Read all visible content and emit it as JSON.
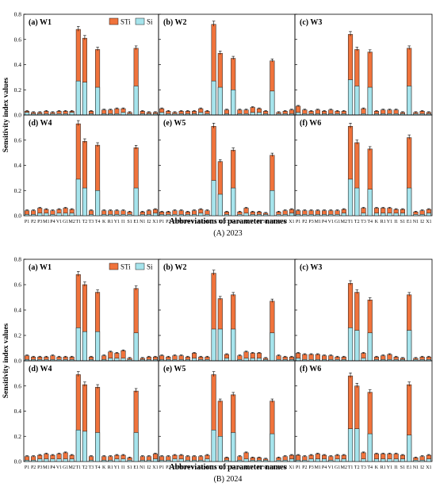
{
  "figure": {
    "ylabel": "Sensitivity index values",
    "xlabel": "Abbreviations of parameter names",
    "colors": {
      "sti": "#f0733c",
      "si": "#a6e4ec",
      "edge": "#1a1a1a",
      "error": "#000000"
    },
    "legend": {
      "sti": "STi",
      "si": "Si",
      "placement": "top-right of first panel"
    },
    "yticks": [
      "0.0",
      "0.2",
      "0.4",
      "0.6",
      "0.8"
    ],
    "ylim": [
      0,
      0.8
    ]
  },
  "chart_data": [
    {
      "type": "bar",
      "stacked": true,
      "caption": "(A) 2023",
      "categories": [
        "P1",
        "P2",
        "P3",
        "M1",
        "P4",
        "V1",
        "G1",
        "M2",
        "T1",
        "T2",
        "T3",
        "T4",
        "K",
        "R1",
        "Y1",
        "I1",
        "S1",
        "E1",
        "N1",
        "I2",
        "X1"
      ],
      "panels": [
        {
          "label": "(a) W1",
          "sti": [
            0.03,
            0.02,
            0.02,
            0.03,
            0.02,
            0.03,
            0.03,
            0.03,
            0.68,
            0.61,
            0.03,
            0.52,
            0.04,
            0.04,
            0.05,
            0.05,
            0.02,
            0.53,
            0.03,
            0.02,
            0.02
          ],
          "si": [
            0.02,
            0.01,
            0.01,
            0.01,
            0.01,
            0.01,
            0.01,
            0.02,
            0.27,
            0.26,
            0.01,
            0.22,
            0.01,
            0.01,
            0.01,
            0.02,
            0.01,
            0.23,
            0.01,
            0.01,
            0.01
          ]
        },
        {
          "label": "(b) W2",
          "sti": [
            0.05,
            0.03,
            0.02,
            0.03,
            0.03,
            0.03,
            0.05,
            0.03,
            0.72,
            0.49,
            0.04,
            0.45,
            0.04,
            0.04,
            0.06,
            0.05,
            0.03,
            0.43,
            0.02,
            0.03,
            0.04
          ],
          "si": [
            0.02,
            0.01,
            0.01,
            0.01,
            0.01,
            0.01,
            0.02,
            0.01,
            0.27,
            0.22,
            0.01,
            0.2,
            0.01,
            0.01,
            0.02,
            0.02,
            0.01,
            0.19,
            0.01,
            0.01,
            0.01
          ]
        },
        {
          "label": "(c) W3",
          "sti": [
            0.07,
            0.04,
            0.03,
            0.04,
            0.03,
            0.04,
            0.03,
            0.03,
            0.64,
            0.52,
            0.05,
            0.5,
            0.03,
            0.04,
            0.04,
            0.04,
            0.02,
            0.53,
            0.02,
            0.03,
            0.02
          ],
          "si": [
            0.02,
            0.01,
            0.01,
            0.01,
            0.01,
            0.01,
            0.01,
            0.01,
            0.28,
            0.23,
            0.01,
            0.22,
            0.01,
            0.01,
            0.01,
            0.01,
            0.01,
            0.23,
            0.01,
            0.01,
            0.01
          ]
        },
        {
          "label": "(d) W4",
          "sti": [
            0.04,
            0.04,
            0.06,
            0.05,
            0.04,
            0.05,
            0.06,
            0.05,
            0.73,
            0.59,
            0.04,
            0.56,
            0.04,
            0.04,
            0.04,
            0.04,
            0.03,
            0.54,
            0.03,
            0.04,
            0.05
          ],
          "si": [
            0.01,
            0.01,
            0.02,
            0.02,
            0.01,
            0.02,
            0.02,
            0.02,
            0.29,
            0.22,
            0.01,
            0.2,
            0.01,
            0.01,
            0.01,
            0.01,
            0.01,
            0.22,
            0.01,
            0.01,
            0.02
          ]
        },
        {
          "label": "(e) W5",
          "sti": [
            0.03,
            0.03,
            0.04,
            0.04,
            0.03,
            0.04,
            0.05,
            0.04,
            0.71,
            0.43,
            0.03,
            0.52,
            0.03,
            0.06,
            0.03,
            0.03,
            0.02,
            0.48,
            0.03,
            0.04,
            0.05
          ],
          "si": [
            0.01,
            0.01,
            0.01,
            0.01,
            0.01,
            0.01,
            0.02,
            0.01,
            0.28,
            0.17,
            0.01,
            0.22,
            0.01,
            0.02,
            0.01,
            0.01,
            0.01,
            0.2,
            0.01,
            0.01,
            0.02
          ]
        },
        {
          "label": "(f) W6",
          "sti": [
            0.04,
            0.04,
            0.04,
            0.04,
            0.04,
            0.04,
            0.04,
            0.05,
            0.71,
            0.58,
            0.06,
            0.53,
            0.06,
            0.06,
            0.06,
            0.05,
            0.05,
            0.62,
            0.03,
            0.04,
            0.05
          ],
          "si": [
            0.01,
            0.01,
            0.01,
            0.01,
            0.01,
            0.01,
            0.01,
            0.02,
            0.29,
            0.22,
            0.02,
            0.21,
            0.02,
            0.02,
            0.02,
            0.02,
            0.02,
            0.22,
            0.01,
            0.01,
            0.02
          ]
        }
      ]
    },
    {
      "type": "bar",
      "stacked": true,
      "caption": "(B) 2024",
      "categories": [
        "P1",
        "P2",
        "P3",
        "M1",
        "P4",
        "V1",
        "G1",
        "M2",
        "T1",
        "T2",
        "T3",
        "T4",
        "K",
        "R1",
        "Y1",
        "I1",
        "S1",
        "E1",
        "N1",
        "I2",
        "X1"
      ],
      "panels": [
        {
          "label": "(a) W1",
          "sti": [
            0.04,
            0.03,
            0.03,
            0.03,
            0.04,
            0.03,
            0.03,
            0.03,
            0.68,
            0.6,
            0.03,
            0.54,
            0.04,
            0.07,
            0.06,
            0.08,
            0.02,
            0.57,
            0.02,
            0.03,
            0.03
          ],
          "si": [
            0.01,
            0.01,
            0.01,
            0.01,
            0.01,
            0.01,
            0.01,
            0.01,
            0.26,
            0.23,
            0.01,
            0.23,
            0.01,
            0.02,
            0.02,
            0.02,
            0.01,
            0.22,
            0.01,
            0.01,
            0.01
          ]
        },
        {
          "label": "(b) W2",
          "sti": [
            0.04,
            0.03,
            0.04,
            0.04,
            0.03,
            0.06,
            0.03,
            0.03,
            0.69,
            0.49,
            0.05,
            0.52,
            0.04,
            0.07,
            0.06,
            0.06,
            0.02,
            0.47,
            0.04,
            0.03,
            0.03
          ],
          "si": [
            0.01,
            0.01,
            0.01,
            0.01,
            0.01,
            0.02,
            0.01,
            0.01,
            0.25,
            0.25,
            0.02,
            0.25,
            0.01,
            0.02,
            0.02,
            0.02,
            0.01,
            0.22,
            0.01,
            0.01,
            0.01
          ]
        },
        {
          "label": "(c) W3",
          "sti": [
            0.06,
            0.05,
            0.05,
            0.05,
            0.04,
            0.04,
            0.03,
            0.03,
            0.61,
            0.54,
            0.06,
            0.48,
            0.03,
            0.04,
            0.05,
            0.03,
            0.02,
            0.52,
            0.02,
            0.03,
            0.03
          ],
          "si": [
            0.02,
            0.01,
            0.01,
            0.01,
            0.01,
            0.01,
            0.01,
            0.01,
            0.26,
            0.24,
            0.02,
            0.22,
            0.01,
            0.01,
            0.01,
            0.01,
            0.01,
            0.24,
            0.01,
            0.01,
            0.01
          ]
        },
        {
          "label": "(d) W4",
          "sti": [
            0.04,
            0.04,
            0.05,
            0.06,
            0.05,
            0.06,
            0.07,
            0.05,
            0.69,
            0.61,
            0.04,
            0.59,
            0.04,
            0.04,
            0.05,
            0.05,
            0.03,
            0.56,
            0.04,
            0.04,
            0.06
          ],
          "si": [
            0.01,
            0.01,
            0.02,
            0.02,
            0.02,
            0.02,
            0.02,
            0.02,
            0.25,
            0.24,
            0.01,
            0.23,
            0.01,
            0.01,
            0.02,
            0.02,
            0.01,
            0.23,
            0.01,
            0.01,
            0.02
          ]
        },
        {
          "label": "(e) W5",
          "sti": [
            0.04,
            0.04,
            0.05,
            0.05,
            0.04,
            0.04,
            0.04,
            0.05,
            0.69,
            0.48,
            0.03,
            0.53,
            0.04,
            0.07,
            0.03,
            0.03,
            0.02,
            0.48,
            0.03,
            0.04,
            0.05
          ],
          "si": [
            0.01,
            0.01,
            0.02,
            0.02,
            0.01,
            0.01,
            0.01,
            0.02,
            0.25,
            0.2,
            0.01,
            0.23,
            0.01,
            0.02,
            0.01,
            0.01,
            0.01,
            0.22,
            0.01,
            0.01,
            0.02
          ]
        },
        {
          "label": "(f) W6",
          "sti": [
            0.05,
            0.04,
            0.05,
            0.06,
            0.05,
            0.04,
            0.05,
            0.05,
            0.68,
            0.6,
            0.07,
            0.55,
            0.06,
            0.06,
            0.06,
            0.06,
            0.05,
            0.61,
            0.03,
            0.04,
            0.05
          ],
          "si": [
            0.01,
            0.01,
            0.02,
            0.02,
            0.02,
            0.01,
            0.02,
            0.02,
            0.26,
            0.26,
            0.02,
            0.22,
            0.02,
            0.02,
            0.02,
            0.02,
            0.02,
            0.21,
            0.01,
            0.01,
            0.02
          ]
        }
      ]
    }
  ]
}
